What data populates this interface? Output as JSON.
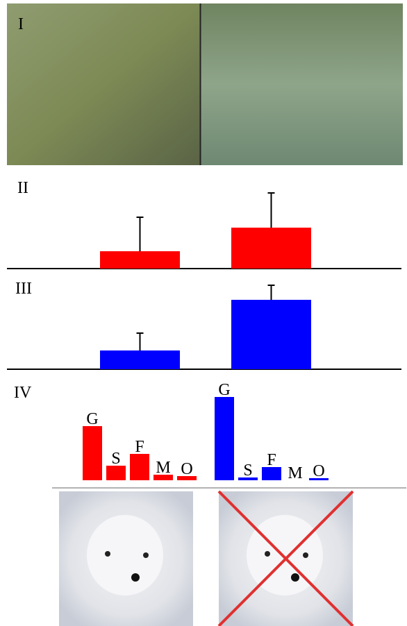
{
  "photo_label": "I",
  "chart_data": [
    {
      "type": "bar",
      "label": "II",
      "series": [
        {
          "color": "#ff0000",
          "values": [
            25,
            59
          ],
          "errors": [
            49,
            50
          ]
        }
      ]
    },
    {
      "type": "bar",
      "label": "III",
      "series": [
        {
          "color": "#0000ff",
          "values": [
            27,
            100
          ],
          "errors": [
            25,
            21
          ]
        }
      ]
    },
    {
      "type": "grouped",
      "label": "IV",
      "categories": [
        "G",
        "S",
        "F",
        "M",
        "O"
      ],
      "series": [
        {
          "color": "#ff0000",
          "values": [
            78,
            21,
            38,
            8,
            6
          ]
        },
        {
          "color": "#0000ff",
          "values": [
            120,
            4,
            19,
            0,
            3
          ]
        }
      ]
    }
  ]
}
